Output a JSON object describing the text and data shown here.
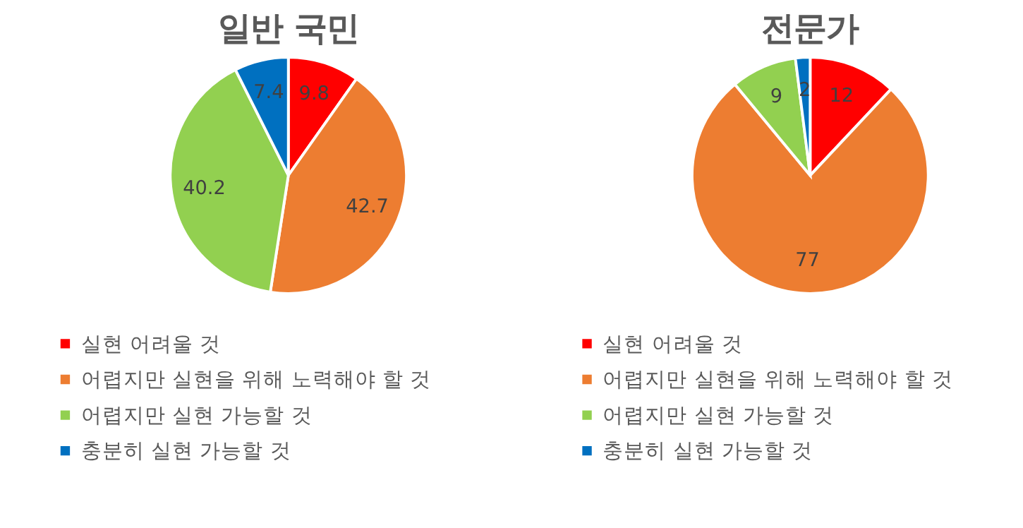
{
  "chart_data": [
    {
      "type": "pie",
      "title": "일반 국민",
      "categories": [
        "실현 어려울 것",
        "어렵지만 실현을 위해 노력해야 할 것",
        "어렵지만 실현 가능할 것",
        "충분히 실현 가능할 것"
      ],
      "values": [
        9.8,
        42.7,
        40.2,
        7.4
      ],
      "colors": [
        "#ff0000",
        "#ed7d31",
        "#92d050",
        "#0070c0"
      ],
      "data_labels": true,
      "legend": "bottom"
    },
    {
      "type": "pie",
      "title": "전문가",
      "categories": [
        "실현 어려울 것",
        "어렵지만 실현을 위해 노력해야 할 것",
        "어렵지만 실현 가능할 것",
        "충분히 실현 가능할 것"
      ],
      "values": [
        12,
        77,
        9,
        2
      ],
      "colors": [
        "#ff0000",
        "#ed7d31",
        "#92d050",
        "#0070c0"
      ],
      "data_labels": true,
      "legend": "bottom"
    }
  ]
}
